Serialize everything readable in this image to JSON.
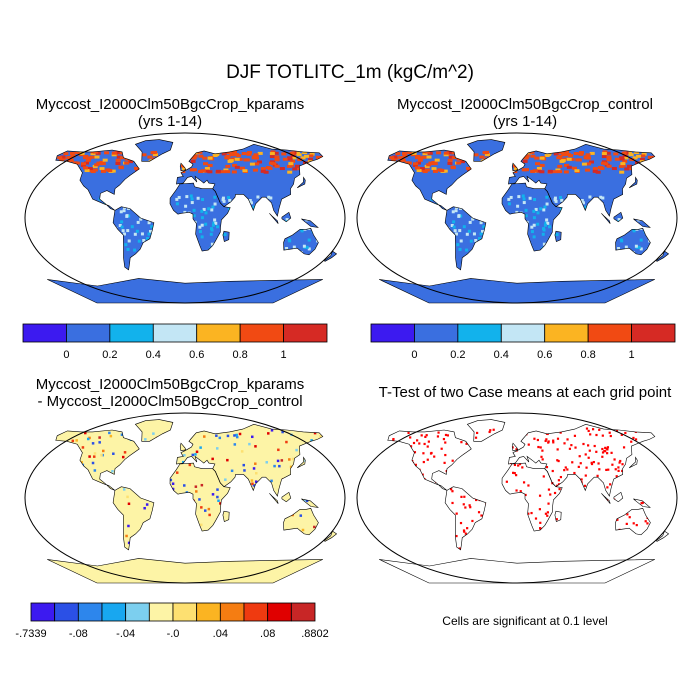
{
  "main_title": "DJF TOTLITC_1m (kgC/m^2)",
  "panels": {
    "kparams": {
      "title_line1": "Myccost_I2000Clm50BgcCrop_kparams",
      "title_line2": "(yrs 1-14)"
    },
    "control": {
      "title_line1": "Myccost_I2000Clm50BgcCrop_control",
      "title_line2": "(yrs 1-14)"
    },
    "difference": {
      "title_line1": "Myccost_I2000Clm50BgcCrop_kparams",
      "title_line2": "- Myccost_I2000Clm50BgcCrop_control"
    },
    "ttest": {
      "title": "T-Test of two Case means at each grid point",
      "note": "Cells are significant at 0.1 level"
    }
  },
  "colorbars": {
    "main": {
      "colors": [
        "#3c1af0",
        "#3a6fe0",
        "#12b2ec",
        "#c3e6f5",
        "#fbb422",
        "#f14a13",
        "#d62a24"
      ],
      "labels": [
        "0",
        "0.2",
        "0.4",
        "0.6",
        "0.8",
        "1"
      ]
    },
    "diff": {
      "colors": [
        "#3c1af0",
        "#2b50e6",
        "#2d86ec",
        "#18a7f0",
        "#7ccfef",
        "#fdf4a6",
        "#fde071",
        "#fbb422",
        "#f57d12",
        "#ef3a10",
        "#e00000",
        "#c82626"
      ],
      "labels": [
        "-.7339",
        "-.08",
        "-.04",
        "-.0",
        ".04",
        ".08",
        ".8802"
      ]
    }
  },
  "colors": {
    "ocean": "#ffffff",
    "significant": "#ff0000",
    "diff_background": "#fdf4a6",
    "main_background": "#3a6fe0"
  }
}
